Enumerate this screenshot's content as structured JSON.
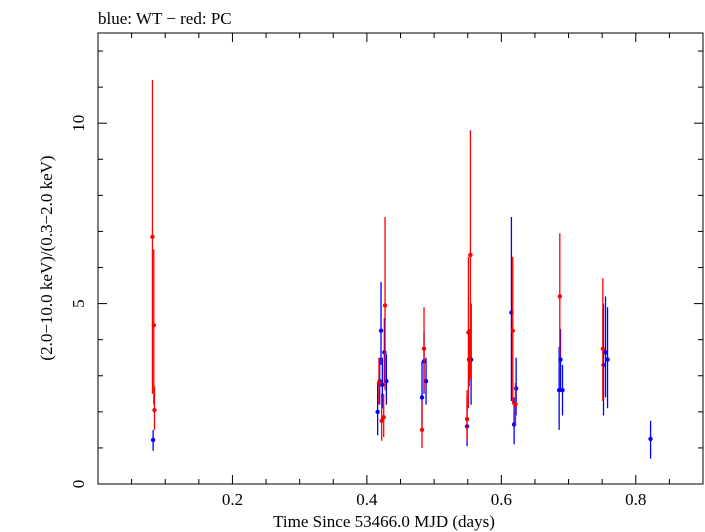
{
  "chart_data": {
    "type": "scatter",
    "title": "blue: WT − red: PC",
    "xlabel": "Time Since 53466.0 MJD (days)",
    "ylabel": "(2.0−10.0 keV)/(0.3−2.0 keV)",
    "xlim": [
      0.0,
      0.9
    ],
    "ylim": [
      0.0,
      12.5
    ],
    "x_ticks": [
      0.2,
      0.4,
      0.6,
      0.8
    ],
    "x_tick_labels": [
      "0.2",
      "0.4",
      "0.6",
      "0.8"
    ],
    "y_ticks": [
      0,
      5,
      10
    ],
    "y_tick_labels": [
      "0",
      "5",
      "10"
    ],
    "grid": false,
    "series": [
      {
        "name": "WT",
        "color": "#0000ff",
        "points": [
          {
            "x": 0.082,
            "y": 1.22,
            "lo": 0.92,
            "hi": 1.5
          },
          {
            "x": 0.416,
            "y": 2.0,
            "lo": 1.35,
            "hi": 2.8
          },
          {
            "x": 0.419,
            "y": 2.85,
            "lo": 2.2,
            "hi": 3.5
          },
          {
            "x": 0.421,
            "y": 4.25,
            "lo": 3.3,
            "hi": 5.6
          },
          {
            "x": 0.423,
            "y": 2.75,
            "lo": 2.1,
            "hi": 3.5
          },
          {
            "x": 0.426,
            "y": 3.65,
            "lo": 2.8,
            "hi": 4.6
          },
          {
            "x": 0.429,
            "y": 2.85,
            "lo": 2.2,
            "hi": 3.6
          },
          {
            "x": 0.482,
            "y": 2.4,
            "lo": 1.6,
            "hi": 3.4
          },
          {
            "x": 0.485,
            "y": 3.4,
            "lo": 2.5,
            "hi": 4.2
          },
          {
            "x": 0.488,
            "y": 2.85,
            "lo": 2.2,
            "hi": 3.5
          },
          {
            "x": 0.549,
            "y": 1.6,
            "lo": 1.05,
            "hi": 2.4
          },
          {
            "x": 0.552,
            "y": 3.45,
            "lo": 2.7,
            "hi": 4.3
          },
          {
            "x": 0.555,
            "y": 3.45,
            "lo": 2.2,
            "hi": 5.0
          },
          {
            "x": 0.615,
            "y": 4.75,
            "lo": 2.3,
            "hi": 7.4
          },
          {
            "x": 0.619,
            "y": 1.65,
            "lo": 1.1,
            "hi": 2.4
          },
          {
            "x": 0.622,
            "y": 2.65,
            "lo": 1.9,
            "hi": 3.5
          },
          {
            "x": 0.686,
            "y": 2.6,
            "lo": 1.5,
            "hi": 3.8
          },
          {
            "x": 0.688,
            "y": 3.45,
            "lo": 2.6,
            "hi": 4.3
          },
          {
            "x": 0.691,
            "y": 2.6,
            "lo": 1.9,
            "hi": 3.3
          },
          {
            "x": 0.752,
            "y": 3.3,
            "lo": 1.9,
            "hi": 5.0
          },
          {
            "x": 0.755,
            "y": 3.65,
            "lo": 2.4,
            "hi": 5.2
          },
          {
            "x": 0.758,
            "y": 3.45,
            "lo": 2.1,
            "hi": 4.9
          },
          {
            "x": 0.822,
            "y": 1.25,
            "lo": 0.7,
            "hi": 1.75
          }
        ]
      },
      {
        "name": "PC",
        "color": "#ff0000",
        "points": [
          {
            "x": 0.081,
            "y": 6.85,
            "lo": 2.5,
            "hi": 11.2
          },
          {
            "x": 0.083,
            "y": 4.4,
            "lo": 2.2,
            "hi": 6.5
          },
          {
            "x": 0.084,
            "y": 2.05,
            "lo": 1.5,
            "hi": 2.7
          },
          {
            "x": 0.418,
            "y": 2.8,
            "lo": 2.2,
            "hi": 3.5
          },
          {
            "x": 0.422,
            "y": 1.75,
            "lo": 1.2,
            "hi": 2.5
          },
          {
            "x": 0.425,
            "y": 1.85,
            "lo": 1.3,
            "hi": 2.5
          },
          {
            "x": 0.427,
            "y": 4.95,
            "lo": 2.6,
            "hi": 7.4
          },
          {
            "x": 0.482,
            "y": 1.5,
            "lo": 1.0,
            "hi": 2.3
          },
          {
            "x": 0.485,
            "y": 3.75,
            "lo": 2.6,
            "hi": 4.9
          },
          {
            "x": 0.549,
            "y": 1.8,
            "lo": 1.2,
            "hi": 2.6
          },
          {
            "x": 0.551,
            "y": 4.2,
            "lo": 2.1,
            "hi": 6.3
          },
          {
            "x": 0.554,
            "y": 6.35,
            "lo": 2.9,
            "hi": 9.8
          },
          {
            "x": 0.617,
            "y": 4.25,
            "lo": 2.2,
            "hi": 6.3
          },
          {
            "x": 0.621,
            "y": 2.2,
            "lo": 1.6,
            "hi": 2.8
          },
          {
            "x": 0.687,
            "y": 5.2,
            "lo": 3.5,
            "hi": 6.95
          },
          {
            "x": 0.751,
            "y": 3.75,
            "lo": 2.3,
            "hi": 5.7
          }
        ]
      }
    ]
  }
}
